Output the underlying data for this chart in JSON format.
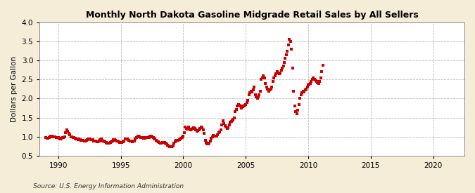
{
  "title": "Monthly North Dakota Gasoline Midgrade Retail Sales by All Sellers",
  "ylabel": "Dollars per Gallon",
  "source": "Source: U.S. Energy Information Administration",
  "xlim": [
    1988.5,
    2022.5
  ],
  "ylim": [
    0.5,
    4.0
  ],
  "xticks": [
    1990,
    1995,
    2000,
    2005,
    2010,
    2015,
    2020
  ],
  "yticks": [
    0.5,
    1.0,
    1.5,
    2.0,
    2.5,
    3.0,
    3.5,
    4.0
  ],
  "bg_color": "#F5EDD8",
  "plot_bg_color": "#FFFFFF",
  "dot_color": "#CC0000",
  "grid_color": "#AAAAAA",
  "data": [
    [
      1989.0,
      0.97
    ],
    [
      1989.083,
      0.96
    ],
    [
      1989.167,
      0.95
    ],
    [
      1989.25,
      0.97
    ],
    [
      1989.333,
      1.0
    ],
    [
      1989.417,
      1.02
    ],
    [
      1989.5,
      1.01
    ],
    [
      1989.583,
      1.0
    ],
    [
      1989.667,
      1.0
    ],
    [
      1989.75,
      0.99
    ],
    [
      1989.833,
      0.97
    ],
    [
      1989.917,
      0.97
    ],
    [
      1990.0,
      0.97
    ],
    [
      1990.083,
      0.95
    ],
    [
      1990.167,
      0.94
    ],
    [
      1990.25,
      0.95
    ],
    [
      1990.333,
      0.97
    ],
    [
      1990.417,
      0.98
    ],
    [
      1990.5,
      1.0
    ],
    [
      1990.583,
      1.1
    ],
    [
      1990.667,
      1.18
    ],
    [
      1990.75,
      1.14
    ],
    [
      1990.833,
      1.08
    ],
    [
      1990.917,
      1.04
    ],
    [
      1991.0,
      1.0
    ],
    [
      1991.083,
      0.99
    ],
    [
      1991.167,
      0.97
    ],
    [
      1991.25,
      0.97
    ],
    [
      1991.333,
      0.95
    ],
    [
      1991.417,
      0.94
    ],
    [
      1991.5,
      0.93
    ],
    [
      1991.583,
      0.92
    ],
    [
      1991.667,
      0.93
    ],
    [
      1991.75,
      0.92
    ],
    [
      1991.833,
      0.9
    ],
    [
      1991.917,
      0.9
    ],
    [
      1992.0,
      0.9
    ],
    [
      1992.083,
      0.89
    ],
    [
      1992.167,
      0.89
    ],
    [
      1992.25,
      0.9
    ],
    [
      1992.333,
      0.91
    ],
    [
      1992.417,
      0.93
    ],
    [
      1992.5,
      0.93
    ],
    [
      1992.583,
      0.92
    ],
    [
      1992.667,
      0.91
    ],
    [
      1992.75,
      0.91
    ],
    [
      1992.833,
      0.89
    ],
    [
      1992.917,
      0.88
    ],
    [
      1993.0,
      0.88
    ],
    [
      1993.083,
      0.87
    ],
    [
      1993.167,
      0.87
    ],
    [
      1993.25,
      0.88
    ],
    [
      1993.333,
      0.92
    ],
    [
      1993.417,
      0.93
    ],
    [
      1993.5,
      0.9
    ],
    [
      1993.583,
      0.88
    ],
    [
      1993.667,
      0.88
    ],
    [
      1993.75,
      0.86
    ],
    [
      1993.833,
      0.84
    ],
    [
      1993.917,
      0.83
    ],
    [
      1994.0,
      0.83
    ],
    [
      1994.083,
      0.83
    ],
    [
      1994.167,
      0.84
    ],
    [
      1994.25,
      0.86
    ],
    [
      1994.333,
      0.89
    ],
    [
      1994.417,
      0.91
    ],
    [
      1994.5,
      0.91
    ],
    [
      1994.583,
      0.9
    ],
    [
      1994.667,
      0.89
    ],
    [
      1994.75,
      0.88
    ],
    [
      1994.833,
      0.86
    ],
    [
      1994.917,
      0.84
    ],
    [
      1995.0,
      0.84
    ],
    [
      1995.083,
      0.85
    ],
    [
      1995.167,
      0.86
    ],
    [
      1995.25,
      0.89
    ],
    [
      1995.333,
      0.93
    ],
    [
      1995.417,
      0.94
    ],
    [
      1995.5,
      0.93
    ],
    [
      1995.583,
      0.91
    ],
    [
      1995.667,
      0.9
    ],
    [
      1995.75,
      0.89
    ],
    [
      1995.833,
      0.88
    ],
    [
      1995.917,
      0.87
    ],
    [
      1996.0,
      0.88
    ],
    [
      1996.083,
      0.89
    ],
    [
      1996.167,
      0.93
    ],
    [
      1996.25,
      0.97
    ],
    [
      1996.333,
      1.0
    ],
    [
      1996.417,
      1.02
    ],
    [
      1996.5,
      1.0
    ],
    [
      1996.583,
      0.98
    ],
    [
      1996.667,
      0.97
    ],
    [
      1996.75,
      0.97
    ],
    [
      1996.833,
      0.96
    ],
    [
      1996.917,
      0.96
    ],
    [
      1997.0,
      0.97
    ],
    [
      1997.083,
      0.97
    ],
    [
      1997.167,
      0.97
    ],
    [
      1997.25,
      0.98
    ],
    [
      1997.333,
      1.01
    ],
    [
      1997.417,
      1.01
    ],
    [
      1997.5,
      0.99
    ],
    [
      1997.583,
      0.97
    ],
    [
      1997.667,
      0.96
    ],
    [
      1997.75,
      0.94
    ],
    [
      1997.833,
      0.9
    ],
    [
      1997.917,
      0.88
    ],
    [
      1998.0,
      0.86
    ],
    [
      1998.083,
      0.84
    ],
    [
      1998.167,
      0.83
    ],
    [
      1998.25,
      0.83
    ],
    [
      1998.333,
      0.84
    ],
    [
      1998.417,
      0.85
    ],
    [
      1998.5,
      0.84
    ],
    [
      1998.583,
      0.82
    ],
    [
      1998.667,
      0.8
    ],
    [
      1998.75,
      0.78
    ],
    [
      1998.833,
      0.76
    ],
    [
      1998.917,
      0.74
    ],
    [
      1999.0,
      0.73
    ],
    [
      1999.083,
      0.73
    ],
    [
      1999.167,
      0.76
    ],
    [
      1999.25,
      0.83
    ],
    [
      1999.333,
      0.87
    ],
    [
      1999.417,
      0.9
    ],
    [
      1999.5,
      0.9
    ],
    [
      1999.583,
      0.9
    ],
    [
      1999.667,
      0.92
    ],
    [
      1999.75,
      0.94
    ],
    [
      1999.833,
      0.96
    ],
    [
      1999.917,
      0.98
    ],
    [
      2000.0,
      1.02
    ],
    [
      2000.083,
      1.1
    ],
    [
      2000.167,
      1.25
    ],
    [
      2000.25,
      1.22
    ],
    [
      2000.333,
      1.19
    ],
    [
      2000.417,
      1.25
    ],
    [
      2000.5,
      1.2
    ],
    [
      2000.583,
      1.18
    ],
    [
      2000.667,
      1.19
    ],
    [
      2000.75,
      1.21
    ],
    [
      2000.833,
      1.24
    ],
    [
      2000.917,
      1.22
    ],
    [
      2001.0,
      1.18
    ],
    [
      2001.083,
      1.14
    ],
    [
      2001.167,
      1.15
    ],
    [
      2001.25,
      1.18
    ],
    [
      2001.333,
      1.22
    ],
    [
      2001.417,
      1.25
    ],
    [
      2001.5,
      1.24
    ],
    [
      2001.583,
      1.18
    ],
    [
      2001.667,
      1.08
    ],
    [
      2001.75,
      0.9
    ],
    [
      2001.833,
      0.84
    ],
    [
      2001.917,
      0.8
    ],
    [
      2002.0,
      0.81
    ],
    [
      2002.083,
      0.82
    ],
    [
      2002.167,
      0.89
    ],
    [
      2002.25,
      0.96
    ],
    [
      2002.333,
      1.0
    ],
    [
      2002.417,
      1.03
    ],
    [
      2002.5,
      1.01
    ],
    [
      2002.583,
      1.02
    ],
    [
      2002.667,
      1.01
    ],
    [
      2002.75,
      1.05
    ],
    [
      2002.833,
      1.1
    ],
    [
      2002.917,
      1.12
    ],
    [
      2003.0,
      1.18
    ],
    [
      2003.083,
      1.3
    ],
    [
      2003.167,
      1.42
    ],
    [
      2003.25,
      1.35
    ],
    [
      2003.333,
      1.28
    ],
    [
      2003.417,
      1.25
    ],
    [
      2003.5,
      1.22
    ],
    [
      2003.583,
      1.24
    ],
    [
      2003.667,
      1.3
    ],
    [
      2003.75,
      1.38
    ],
    [
      2003.833,
      1.4
    ],
    [
      2003.917,
      1.42
    ],
    [
      2004.0,
      1.45
    ],
    [
      2004.083,
      1.5
    ],
    [
      2004.167,
      1.65
    ],
    [
      2004.25,
      1.72
    ],
    [
      2004.333,
      1.8
    ],
    [
      2004.417,
      1.85
    ],
    [
      2004.5,
      1.82
    ],
    [
      2004.583,
      1.8
    ],
    [
      2004.667,
      1.75
    ],
    [
      2004.75,
      1.78
    ],
    [
      2004.833,
      1.8
    ],
    [
      2004.917,
      1.82
    ],
    [
      2005.0,
      1.85
    ],
    [
      2005.083,
      1.9
    ],
    [
      2005.167,
      1.95
    ],
    [
      2005.25,
      2.1
    ],
    [
      2005.333,
      2.15
    ],
    [
      2005.417,
      2.2
    ],
    [
      2005.5,
      2.18
    ],
    [
      2005.583,
      2.22
    ],
    [
      2005.667,
      2.3
    ],
    [
      2005.75,
      2.1
    ],
    [
      2005.833,
      2.05
    ],
    [
      2005.917,
      2.0
    ],
    [
      2006.0,
      2.05
    ],
    [
      2006.083,
      2.1
    ],
    [
      2006.167,
      2.2
    ],
    [
      2006.25,
      2.5
    ],
    [
      2006.333,
      2.55
    ],
    [
      2006.417,
      2.6
    ],
    [
      2006.5,
      2.55
    ],
    [
      2006.583,
      2.4
    ],
    [
      2006.667,
      2.3
    ],
    [
      2006.75,
      2.25
    ],
    [
      2006.833,
      2.2
    ],
    [
      2006.917,
      2.22
    ],
    [
      2007.0,
      2.25
    ],
    [
      2007.083,
      2.3
    ],
    [
      2007.167,
      2.45
    ],
    [
      2007.25,
      2.55
    ],
    [
      2007.333,
      2.6
    ],
    [
      2007.417,
      2.65
    ],
    [
      2007.5,
      2.7
    ],
    [
      2007.583,
      2.68
    ],
    [
      2007.667,
      2.65
    ],
    [
      2007.75,
      2.68
    ],
    [
      2007.833,
      2.75
    ],
    [
      2007.917,
      2.8
    ],
    [
      2008.0,
      2.85
    ],
    [
      2008.083,
      2.95
    ],
    [
      2008.167,
      3.05
    ],
    [
      2008.25,
      3.15
    ],
    [
      2008.333,
      3.25
    ],
    [
      2008.417,
      3.4
    ],
    [
      2008.5,
      3.55
    ],
    [
      2008.583,
      3.5
    ],
    [
      2008.667,
      3.3
    ],
    [
      2008.75,
      2.8
    ],
    [
      2008.833,
      2.2
    ],
    [
      2008.917,
      1.8
    ],
    [
      2009.0,
      1.65
    ],
    [
      2009.083,
      1.6
    ],
    [
      2009.167,
      1.7
    ],
    [
      2009.25,
      1.85
    ],
    [
      2009.333,
      2.0
    ],
    [
      2009.417,
      2.1
    ],
    [
      2009.5,
      2.15
    ],
    [
      2009.583,
      2.2
    ],
    [
      2009.667,
      2.18
    ],
    [
      2009.75,
      2.22
    ],
    [
      2009.833,
      2.25
    ],
    [
      2009.917,
      2.3
    ],
    [
      2010.0,
      2.35
    ],
    [
      2010.083,
      2.38
    ],
    [
      2010.167,
      2.4
    ],
    [
      2010.25,
      2.45
    ],
    [
      2010.333,
      2.5
    ],
    [
      2010.417,
      2.55
    ],
    [
      2010.5,
      2.5
    ],
    [
      2010.583,
      2.48
    ],
    [
      2010.667,
      2.45
    ],
    [
      2010.75,
      2.42
    ],
    [
      2010.833,
      2.4
    ],
    [
      2010.917,
      2.45
    ],
    [
      2011.0,
      2.55
    ],
    [
      2011.083,
      2.7
    ],
    [
      2011.167,
      2.88
    ]
  ]
}
